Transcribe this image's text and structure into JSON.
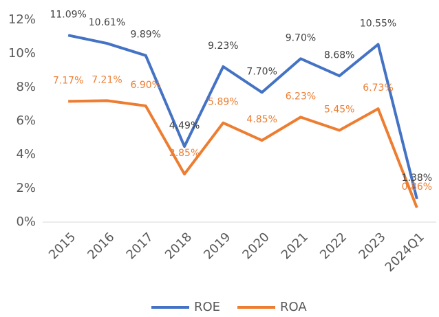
{
  "chart_data": {
    "type": "line",
    "categories": [
      "2015",
      "2016",
      "2017",
      "2018",
      "2019",
      "2020",
      "2021",
      "2022",
      "2023",
      "2024Q1"
    ],
    "series": [
      {
        "name": "ROE",
        "color": "#4472c4",
        "values": [
          11.09,
          10.61,
          9.89,
          4.49,
          9.23,
          7.7,
          9.7,
          8.68,
          10.55,
          1.38
        ],
        "value_labels": [
          "11.09%",
          "10.61%",
          "9.89%",
          "4.49%",
          "9.23%",
          "7.70%",
          "9.70%",
          "8.68%",
          "10.55%",
          "1.38%"
        ]
      },
      {
        "name": "ROA",
        "color": "#ed7d31",
        "values": [
          7.17,
          7.21,
          6.9,
          2.85,
          5.89,
          4.85,
          6.23,
          5.45,
          6.73,
          0.86
        ],
        "value_labels": [
          "7.17%",
          "7.21%",
          "6.90%",
          "2.85%",
          "5.89%",
          "4.85%",
          "6.23%",
          "5.45%",
          "6.73%",
          "0.86%"
        ]
      }
    ],
    "ylim": [
      0,
      12
    ],
    "yticks": [
      {
        "value": 0,
        "label": "0%"
      },
      {
        "value": 2,
        "label": "2%"
      },
      {
        "value": 4,
        "label": "4%"
      },
      {
        "value": 6,
        "label": "6%"
      },
      {
        "value": 8,
        "label": "8%"
      },
      {
        "value": 10,
        "label": "10%"
      },
      {
        "value": 12,
        "label": "12%"
      }
    ],
    "grid": false,
    "legend": "bottom"
  }
}
